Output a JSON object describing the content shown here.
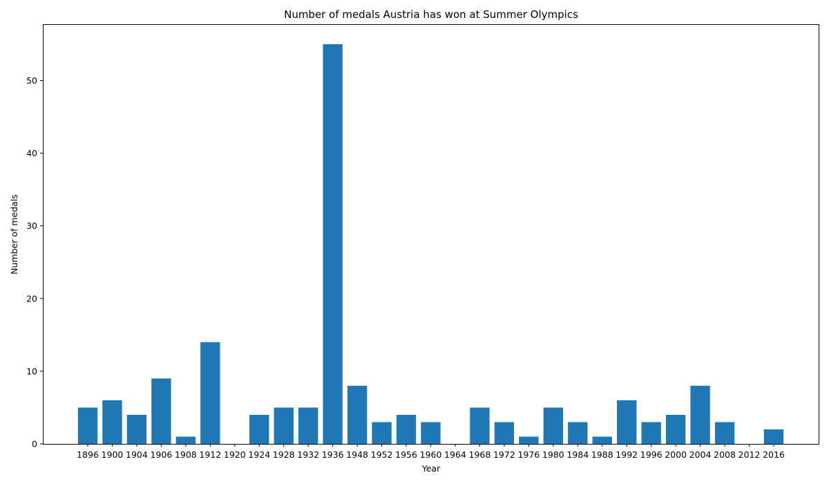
{
  "chart_data": {
    "type": "bar",
    "title": "Number of medals Austria has won at Summer Olympics",
    "xlabel": "Year",
    "ylabel": "Number of medals",
    "categories": [
      "1896",
      "1900",
      "1904",
      "1906",
      "1908",
      "1912",
      "1920",
      "1924",
      "1928",
      "1932",
      "1936",
      "1948",
      "1952",
      "1956",
      "1960",
      "1964",
      "1968",
      "1972",
      "1976",
      "1980",
      "1984",
      "1988",
      "1992",
      "1996",
      "2000",
      "2004",
      "2008",
      "2012",
      "2016"
    ],
    "values": [
      5,
      6,
      4,
      9,
      1,
      14,
      0,
      4,
      5,
      5,
      55,
      8,
      3,
      4,
      3,
      0,
      5,
      3,
      1,
      5,
      3,
      1,
      6,
      3,
      4,
      8,
      3,
      0,
      2
    ],
    "ylim": [
      0,
      57.75
    ],
    "yticks": [
      0,
      10,
      20,
      30,
      40,
      50
    ],
    "bar_color": "#1f77b4",
    "grid": false,
    "legend": "none"
  }
}
